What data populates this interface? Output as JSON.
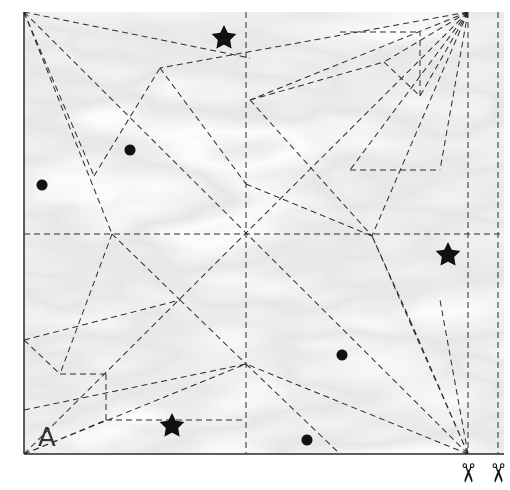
{
  "corner_label": "A",
  "colors": {
    "paper_base": "#ececec",
    "marble_light": "#fafafa",
    "marble_dark": "#b9b9b9",
    "line": "#2a2a2a",
    "marker": "#111111"
  },
  "icons": {
    "star": "star-icon",
    "dot": "dot-icon",
    "scissors": "scissors-icon"
  },
  "scissor_glyph": "✂"
}
